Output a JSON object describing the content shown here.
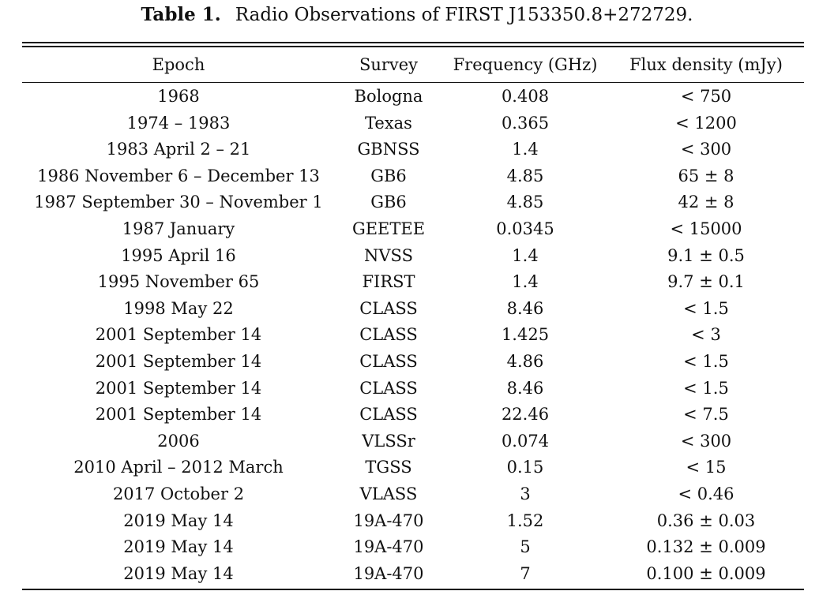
{
  "caption": {
    "label": "Table 1.",
    "text": "Radio Observations of FIRST J153350.8+272729."
  },
  "table": {
    "headers": [
      "Epoch",
      "Survey",
      "Frequency (GHz)",
      "Flux density (mJy)"
    ],
    "rows": [
      [
        "1968",
        "Bologna",
        "0.408",
        "< 750"
      ],
      [
        "1974 – 1983",
        "Texas",
        "0.365",
        "< 1200"
      ],
      [
        "1983 April 2 – 21",
        "GBNSS",
        "1.4",
        "< 300"
      ],
      [
        "1986 November 6 – December 13",
        "GB6",
        "4.85",
        "65 ± 8"
      ],
      [
        "1987 September 30 – November 1",
        "GB6",
        "4.85",
        "42 ± 8"
      ],
      [
        "1987 January",
        "GEETEE",
        "0.0345",
        "< 15000"
      ],
      [
        "1995 April 16",
        "NVSS",
        "1.4",
        "9.1 ± 0.5"
      ],
      [
        "1995 November 65",
        "FIRST",
        "1.4",
        "9.7 ± 0.1"
      ],
      [
        "1998 May 22",
        "CLASS",
        "8.46",
        "< 1.5"
      ],
      [
        "2001 September 14",
        "CLASS",
        "1.425",
        "< 3"
      ],
      [
        "2001 September 14",
        "CLASS",
        "4.86",
        "< 1.5"
      ],
      [
        "2001 September 14",
        "CLASS",
        "8.46",
        "< 1.5"
      ],
      [
        "2001 September 14",
        "CLASS",
        "22.46",
        "< 7.5"
      ],
      [
        "2006",
        "VLSSr",
        "0.074",
        "< 300"
      ],
      [
        "2010 April – 2012 March",
        "TGSS",
        "0.15",
        "< 15"
      ],
      [
        "2017 October 2",
        "VLASS",
        "3",
        "< 0.46"
      ],
      [
        "2019 May 14",
        "19A-470",
        "1.52",
        "0.36 ± 0.03"
      ],
      [
        "2019 May 14",
        "19A-470",
        "5",
        "0.132 ± 0.009"
      ],
      [
        "2019 May 14",
        "19A-470",
        "7",
        "0.100 ± 0.009"
      ]
    ]
  }
}
